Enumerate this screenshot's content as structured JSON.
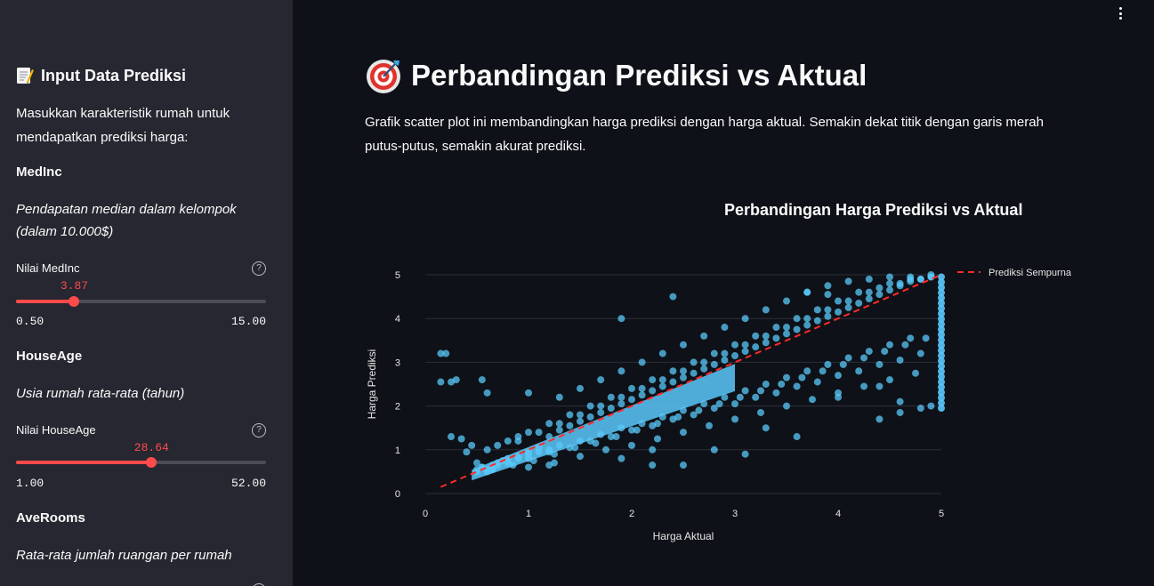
{
  "sidebar": {
    "title": "Input Data Prediksi",
    "title_icon": "memo-icon",
    "intro": "Masukkan karakteristik rumah untuk mendapatkan prediksi harga:",
    "features": [
      {
        "name": "MedInc",
        "description": "Pendapatan median dalam kelompok (dalam 10.000$)",
        "slider_label": "Nilai MedInc",
        "value": "3.87",
        "min": "0.50",
        "max": "15.00",
        "fraction": 0.233
      },
      {
        "name": "HouseAge",
        "description": "Usia rumah rata-rata (tahun)",
        "slider_label": "Nilai HouseAge",
        "value": "28.64",
        "min": "1.00",
        "max": "52.00",
        "fraction": 0.542
      },
      {
        "name": "AveRooms",
        "description": "Rata-rata jumlah ruangan per rumah"
      }
    ]
  },
  "main": {
    "title": "Perbandingan Prediksi vs Aktual",
    "title_icon": "target-icon",
    "description": "Grafik scatter plot ini membandingkan harga prediksi dengan harga aktual. Semakin dekat titik dengan garis merah putus-putus, semakin akurat prediksi."
  },
  "colors": {
    "accent": "#ff4b4b",
    "point": "#5ac8fa",
    "background": "#0e1117",
    "sidebar": "#262730"
  },
  "chart_data": {
    "type": "scatter",
    "title": "Perbandingan Harga Prediksi vs Aktual",
    "xlabel": "Harga Aktual",
    "ylabel": "Harga Prediksi",
    "xlim": [
      0,
      5
    ],
    "ylim": [
      0,
      5
    ],
    "xticks": [
      "0",
      "1",
      "2",
      "3",
      "4",
      "5"
    ],
    "yticks": [
      "0",
      "1",
      "2",
      "3",
      "4",
      "5"
    ],
    "grid": "horizontal",
    "legend_position": "top-right",
    "reference_line": {
      "name": "Prediksi Sempurna",
      "color": "#ff2a2a",
      "style": "dashed",
      "x": [
        0.15,
        5
      ],
      "y": [
        0.15,
        5
      ]
    },
    "series": [
      {
        "color": "#5ac8fa",
        "x": [
          0.15,
          0.2,
          0.35,
          0.25,
          0.45,
          0.5,
          0.55,
          0.6,
          0.4,
          0.65,
          0.7,
          0.75,
          0.8,
          0.9,
          1.0,
          1.1,
          0.6,
          0.7,
          0.8,
          0.9,
          1.0,
          1.2,
          1.3,
          1.4,
          1.5,
          1.6,
          1.7,
          1.8,
          1.9,
          2.0,
          2.1,
          2.2,
          2.3,
          2.4,
          2.5,
          2.6,
          2.7,
          2.8,
          2.9,
          3.0,
          3.1,
          3.2,
          3.3,
          3.4,
          3.5,
          3.6,
          3.7,
          3.8,
          3.9,
          4.0,
          4.1,
          4.2,
          4.3,
          4.4,
          4.5,
          4.6,
          4.7,
          4.8,
          4.9,
          0.5,
          0.6,
          0.55,
          0.65,
          0.5,
          0.7,
          0.8,
          0.9,
          1.0,
          1.1,
          1.2,
          1.3,
          1.5,
          1.7,
          1.9,
          2.1,
          2.3,
          2.5,
          2.7,
          2.9,
          3.1,
          3.3,
          3.5,
          3.7,
          3.9,
          4.1,
          4.3,
          4.5,
          4.7,
          1.2,
          1.4,
          1.6,
          1.8,
          2.0,
          2.2,
          2.4,
          2.6,
          2.8,
          3.0,
          3.2,
          3.4,
          3.6,
          3.8,
          4.0,
          4.2,
          4.4,
          4.6,
          4.8,
          0.8,
          1.0,
          1.2,
          1.4,
          1.6,
          1.8,
          2.0,
          2.2,
          2.4,
          2.6,
          2.8,
          3.0,
          3.2,
          3.4,
          3.6,
          3.8,
          4.0,
          4.2,
          4.4,
          4.6,
          4.8,
          1.3,
          1.5,
          1.7,
          1.9,
          2.1,
          2.3,
          2.5,
          2.7,
          2.9,
          3.1,
          3.3,
          3.5,
          3.7,
          3.9,
          4.1,
          4.3,
          4.5,
          4.7,
          4.9,
          0.9,
          1.1,
          1.3,
          1.5,
          1.7,
          1.9,
          2.1,
          2.3,
          2.5,
          2.7,
          2.9,
          3.1,
          3.3,
          3.5,
          3.7,
          3.9,
          4.1,
          4.3,
          4.5,
          4.7,
          4.9,
          1.0,
          1.25,
          1.5,
          1.75,
          2.0,
          2.25,
          2.5,
          2.75,
          3.0,
          3.25,
          3.5,
          3.75,
          4.0,
          4.25,
          4.5,
          4.75,
          0.65,
          0.85,
          1.05,
          1.25,
          1.45,
          1.65,
          1.85,
          2.05,
          2.25,
          2.45,
          2.65,
          2.85,
          3.05,
          3.25,
          3.45,
          3.65,
          3.85,
          4.05,
          4.25,
          4.45,
          4.65,
          4.85,
          1.2,
          2.2,
          2.4,
          1.9,
          4.8,
          4.6,
          4.9,
          4.4,
          3.1,
          2.8,
          0.15,
          0.55,
          1.0,
          0.6,
          0.25,
          0.3,
          1.9,
          2.2,
          2.5,
          3.3,
          3.6,
          4.4,
          4.6,
          4.0,
          3.9,
          3.7
        ],
        "y": [
          2.55,
          3.2,
          1.25,
          1.3,
          1.1,
          0.55,
          0.6,
          0.55,
          0.95,
          0.65,
          0.7,
          0.75,
          0.8,
          0.85,
          0.95,
          1.05,
          1.0,
          1.1,
          1.2,
          1.3,
          1.4,
          1.3,
          1.45,
          1.55,
          1.65,
          1.75,
          1.85,
          1.95,
          2.05,
          2.15,
          2.25,
          2.35,
          2.45,
          2.55,
          2.65,
          2.75,
          2.85,
          2.95,
          3.05,
          3.15,
          3.25,
          3.35,
          3.45,
          3.55,
          3.65,
          3.75,
          3.85,
          3.95,
          4.05,
          4.15,
          4.25,
          4.35,
          4.45,
          4.55,
          4.65,
          4.75,
          4.85,
          4.9,
          4.95,
          0.5,
          0.5,
          0.6,
          0.55,
          0.7,
          0.65,
          0.75,
          0.8,
          0.9,
          0.95,
          1.0,
          1.1,
          1.2,
          1.35,
          1.5,
          1.6,
          1.75,
          1.9,
          2.05,
          2.2,
          2.35,
          2.5,
          2.65,
          2.8,
          2.95,
          3.1,
          3.25,
          3.4,
          3.55,
          1.6,
          1.8,
          2.0,
          2.2,
          2.4,
          2.6,
          2.8,
          3.0,
          3.2,
          3.4,
          3.6,
          3.8,
          4.0,
          4.2,
          4.4,
          4.6,
          4.7,
          4.8,
          4.9,
          0.7,
          0.8,
          0.95,
          1.05,
          1.2,
          1.3,
          1.45,
          1.55,
          1.7,
          1.8,
          1.95,
          2.05,
          2.2,
          2.3,
          2.45,
          2.55,
          2.7,
          2.8,
          2.95,
          3.05,
          3.2,
          2.2,
          2.4,
          2.6,
          2.8,
          3.0,
          3.2,
          3.4,
          3.6,
          3.8,
          4.0,
          4.2,
          4.4,
          4.6,
          4.75,
          4.85,
          4.9,
          4.95,
          4.95,
          5.0,
          1.2,
          1.4,
          1.6,
          1.8,
          2.0,
          2.2,
          2.4,
          2.6,
          2.8,
          3.0,
          3.2,
          3.4,
          3.6,
          3.8,
          4.0,
          4.2,
          4.4,
          4.6,
          4.8,
          4.9,
          4.95,
          0.6,
          0.7,
          0.85,
          1.0,
          1.1,
          1.25,
          1.4,
          1.55,
          1.7,
          1.85,
          2.0,
          2.15,
          2.3,
          2.45,
          2.6,
          2.75,
          0.55,
          0.65,
          0.75,
          0.9,
          1.05,
          1.15,
          1.3,
          1.45,
          1.6,
          1.75,
          1.9,
          2.05,
          2.2,
          2.35,
          2.5,
          2.65,
          2.8,
          2.95,
          3.1,
          3.25,
          3.4,
          3.55,
          0.65,
          0.65,
          4.5,
          4.0,
          1.95,
          2.1,
          2.0,
          2.45,
          0.9,
          1.0,
          3.2,
          2.6,
          2.3,
          2.3,
          2.55,
          2.6,
          0.8,
          1.0,
          0.65,
          1.5,
          1.3,
          1.7,
          1.85,
          2.2,
          4.55,
          4.6
        ]
      }
    ]
  }
}
